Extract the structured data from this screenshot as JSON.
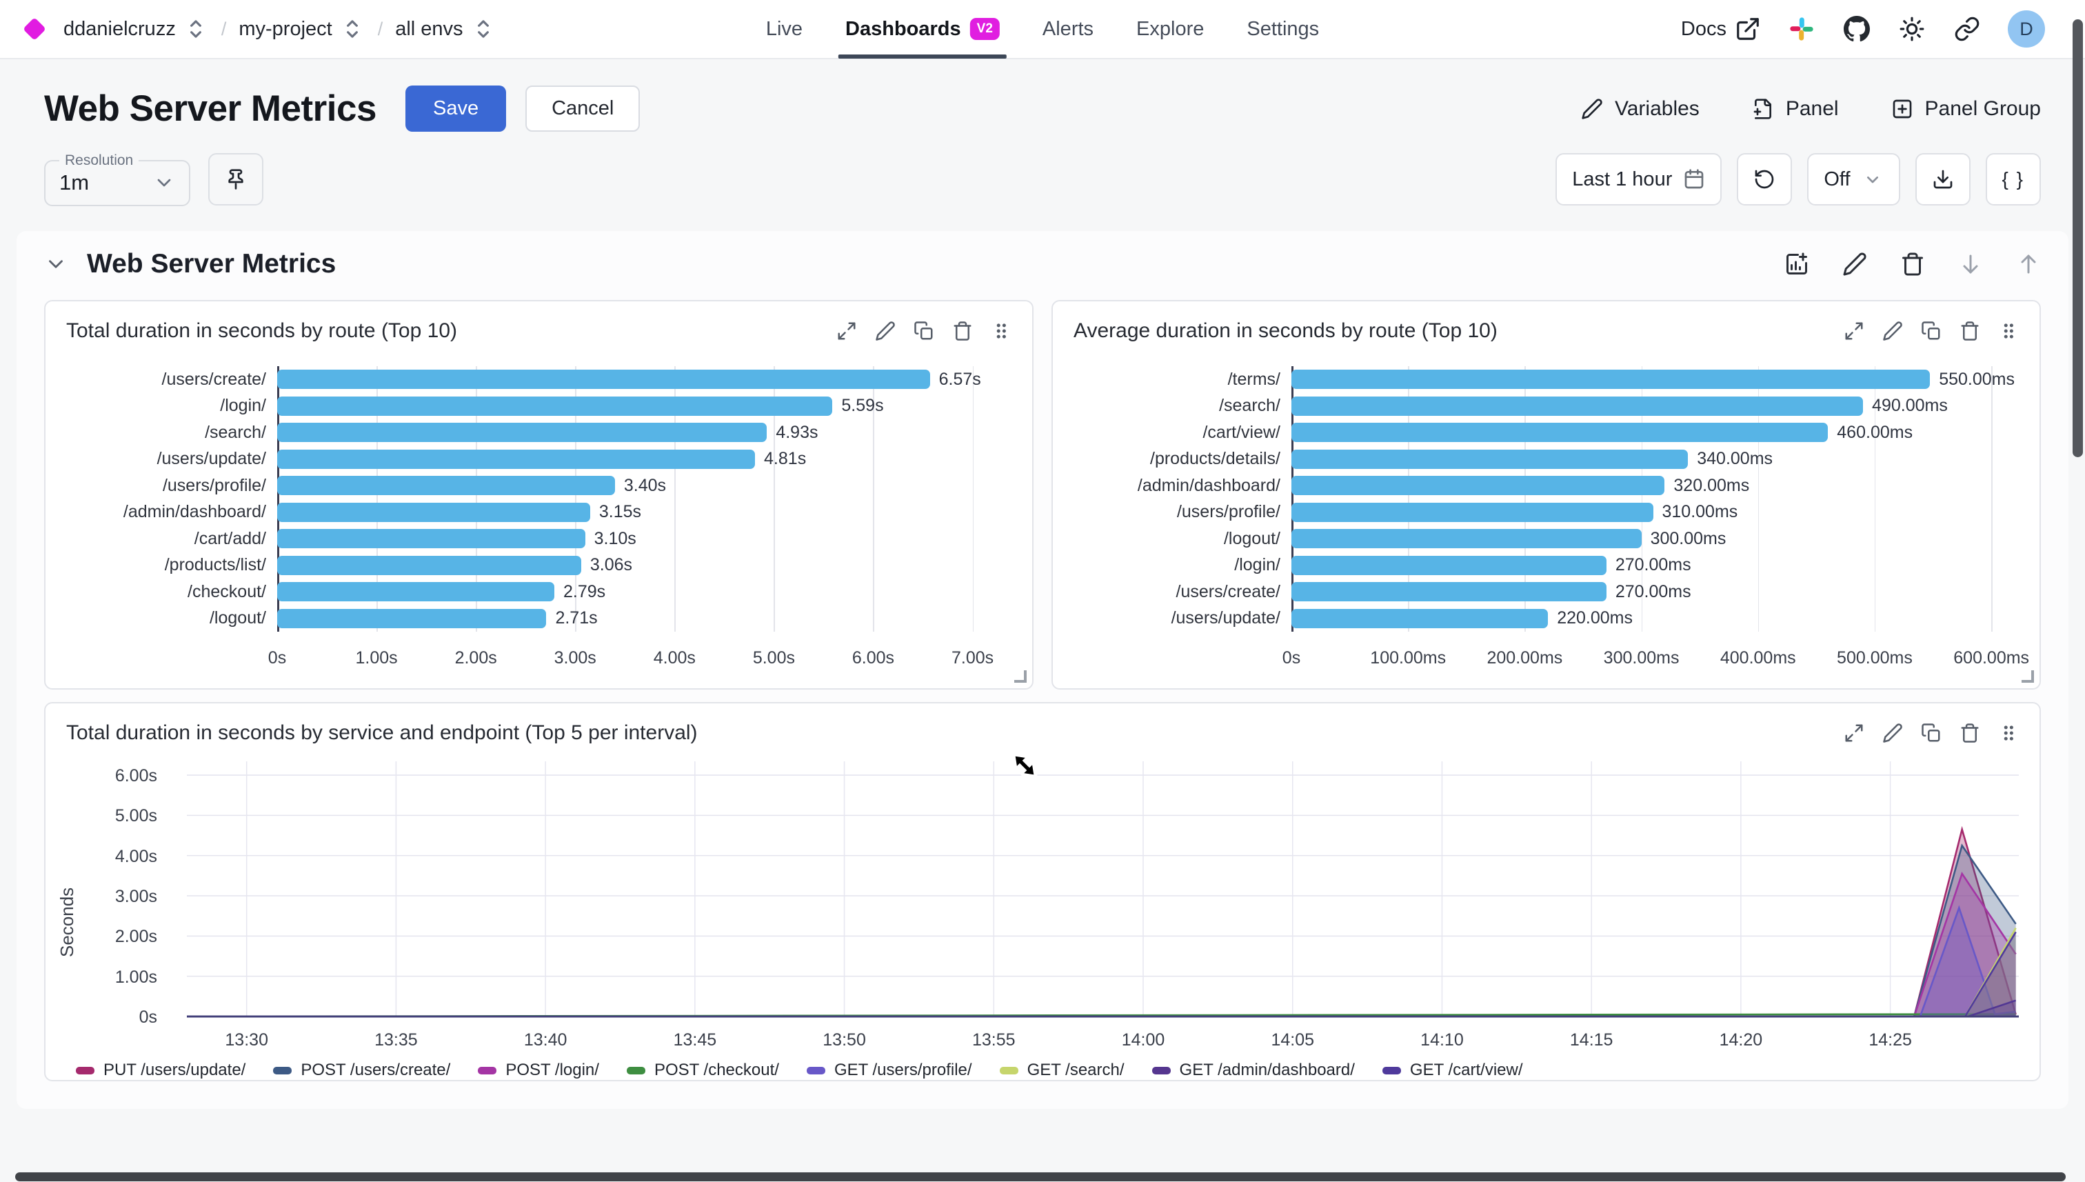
{
  "nav": {
    "breadcrumbs": [
      {
        "label": "ddanielcruzz"
      },
      {
        "label": "my-project"
      },
      {
        "label": "all envs"
      }
    ],
    "tabs": [
      {
        "label": "Live"
      },
      {
        "label": "Dashboards",
        "badge": "V2",
        "active": true
      },
      {
        "label": "Alerts"
      },
      {
        "label": "Explore"
      },
      {
        "label": "Settings"
      }
    ],
    "docs_label": "Docs",
    "avatar_letter": "D"
  },
  "header": {
    "title": "Web Server Metrics",
    "save_label": "Save",
    "cancel_label": "Cancel",
    "actions": [
      {
        "label": "Variables"
      },
      {
        "label": "Panel"
      },
      {
        "label": "Panel Group"
      }
    ]
  },
  "toolbar": {
    "resolution_label": "Resolution",
    "resolution_value": "1m",
    "time_range": "Last 1 hour",
    "auto_refresh": "Off",
    "braces_label": "{ }"
  },
  "section": {
    "title": "Web Server Metrics"
  },
  "panels": [
    {
      "title": "Total duration in seconds by route (Top 10)"
    },
    {
      "title": "Average duration in seconds by route (Top 10)"
    },
    {
      "title": "Total duration in seconds by service and endpoint (Top 5 per interval)"
    }
  ],
  "icons": {
    "logo": "magenta diamond",
    "selector": "up-down chevrons",
    "external-link": "box with arrow",
    "slack": "four-color pinwheel",
    "github": "octocat",
    "theme": "sun",
    "share": "chain link",
    "edit": "pencil",
    "add-panel": "file with plus",
    "add-panel-group": "square with plus",
    "pin": "push pin",
    "calendar": "calendar",
    "refresh": "rotate-ccw arrow",
    "download": "tray with down arrow",
    "query-json": "curly braces",
    "add-chart": "bar chart with plus",
    "delete": "trash can",
    "move-down": "arrow down",
    "move-up": "arrow up",
    "expand": "diagonal arrows",
    "copy": "overlapping squares",
    "drag-handle": "six dots"
  },
  "chart_data": [
    {
      "type": "bar",
      "orientation": "horizontal",
      "title": "Total duration in seconds by route (Top 10)",
      "bar_color": "#57B4E6",
      "categories": [
        "/users/create/",
        "/login/",
        "/search/",
        "/users/update/",
        "/users/profile/",
        "/admin/dashboard/",
        "/cart/add/",
        "/products/list/",
        "/checkout/",
        "/logout/"
      ],
      "values": [
        6.57,
        5.59,
        4.93,
        4.81,
        3.4,
        3.15,
        3.1,
        3.06,
        2.79,
        2.71
      ],
      "value_labels": [
        "6.57s",
        "5.59s",
        "4.93s",
        "4.81s",
        "3.40s",
        "3.15s",
        "3.10s",
        "3.06s",
        "2.79s",
        "2.71s"
      ],
      "xlim": [
        0,
        7.35
      ],
      "xticks": [
        {
          "v": 0,
          "label": "0s"
        },
        {
          "v": 1,
          "label": "1.00s"
        },
        {
          "v": 2,
          "label": "2.00s"
        },
        {
          "v": 3,
          "label": "3.00s"
        },
        {
          "v": 4,
          "label": "4.00s"
        },
        {
          "v": 5,
          "label": "5.00s"
        },
        {
          "v": 6,
          "label": "6.00s"
        },
        {
          "v": 7,
          "label": "7.00s"
        }
      ]
    },
    {
      "type": "bar",
      "orientation": "horizontal",
      "title": "Average duration in seconds by route (Top 10)",
      "bar_color": "#57B4E6",
      "categories": [
        "/terms/",
        "/search/",
        "/cart/view/",
        "/products/details/",
        "/admin/dashboard/",
        "/users/profile/",
        "/logout/",
        "/login/",
        "/users/create/",
        "/users/update/"
      ],
      "values": [
        550,
        490,
        460,
        340,
        320,
        310,
        300,
        270,
        270,
        220
      ],
      "value_labels": [
        "550.00ms",
        "490.00ms",
        "460.00ms",
        "340.00ms",
        "320.00ms",
        "310.00ms",
        "300.00ms",
        "270.00ms",
        "270.00ms",
        "220.00ms"
      ],
      "xlim": [
        0,
        620
      ],
      "xticks": [
        {
          "v": 0,
          "label": "0s"
        },
        {
          "v": 100,
          "label": "100.00ms"
        },
        {
          "v": 200,
          "label": "200.00ms"
        },
        {
          "v": 300,
          "label": "300.00ms"
        },
        {
          "v": 400,
          "label": "400.00ms"
        },
        {
          "v": 500,
          "label": "500.00ms"
        },
        {
          "v": 600,
          "label": "600.00ms"
        }
      ]
    },
    {
      "type": "area",
      "title": "Total duration in seconds by service and endpoint (Top 5 per interval)",
      "ylabel": "Seconds",
      "ylim": [
        0,
        6.3
      ],
      "yticks": [
        {
          "v": 6,
          "label": "6.00s"
        },
        {
          "v": 5,
          "label": "5.00s"
        },
        {
          "v": 4,
          "label": "4.00s"
        },
        {
          "v": 3,
          "label": "3.00s"
        },
        {
          "v": 2,
          "label": "2.00s"
        },
        {
          "v": 1,
          "label": "1.00s"
        },
        {
          "v": 0,
          "label": "0s"
        }
      ],
      "x_domain_minutes": [
        808,
        869.3
      ],
      "xticks": [
        {
          "t": 810,
          "label": "13:30"
        },
        {
          "t": 815,
          "label": "13:35"
        },
        {
          "t": 820,
          "label": "13:40"
        },
        {
          "t": 825,
          "label": "13:45"
        },
        {
          "t": 830,
          "label": "13:50"
        },
        {
          "t": 835,
          "label": "13:55"
        },
        {
          "t": 840,
          "label": "14:00"
        },
        {
          "t": 845,
          "label": "14:05"
        },
        {
          "t": 850,
          "label": "14:10"
        },
        {
          "t": 855,
          "label": "14:15"
        },
        {
          "t": 860,
          "label": "14:20"
        },
        {
          "t": 865,
          "label": "14:25"
        }
      ],
      "legend_position": "bottom",
      "grid": true,
      "series": [
        {
          "name": "PUT /users/update/",
          "color": "#A52A6D",
          "points": [
            [
              808,
              0
            ],
            [
              865.8,
              0
            ],
            [
              867.4,
              4.65
            ],
            [
              869.2,
              0.05
            ]
          ]
        },
        {
          "name": "POST /users/create/",
          "color": "#3D5A85",
          "points": [
            [
              808,
              0
            ],
            [
              865.8,
              0
            ],
            [
              867.4,
              4.25
            ],
            [
              869.2,
              2.3
            ]
          ]
        },
        {
          "name": "POST /login/",
          "color": "#A435A4",
          "points": [
            [
              808,
              0
            ],
            [
              865.8,
              0
            ],
            [
              867.4,
              3.55
            ],
            [
              869.2,
              1.55
            ]
          ]
        },
        {
          "name": "POST /checkout/",
          "color": "#3E8E41",
          "points": [
            [
              808,
              0
            ],
            [
              869.2,
              0.06
            ]
          ]
        },
        {
          "name": "GET /users/profile/",
          "color": "#6858C8",
          "points": [
            [
              808,
              0
            ],
            [
              866.0,
              0
            ],
            [
              867.3,
              2.7
            ],
            [
              868.5,
              0.06
            ],
            [
              869.2,
              0.12
            ]
          ]
        },
        {
          "name": "GET /search/",
          "color": "#C6D56C",
          "points": [
            [
              808,
              0
            ],
            [
              867.5,
              0
            ],
            [
              869.2,
              2.2
            ]
          ]
        },
        {
          "name": "GET /admin/dashboard/",
          "color": "#55368F",
          "points": [
            [
              808,
              0
            ],
            [
              867.6,
              0
            ],
            [
              869.2,
              0.4
            ]
          ]
        },
        {
          "name": "GET /cart/view/",
          "color": "#4F3A9C",
          "points": [
            [
              808,
              0
            ],
            [
              867.5,
              0
            ],
            [
              869.2,
              2.1
            ]
          ]
        }
      ]
    }
  ]
}
